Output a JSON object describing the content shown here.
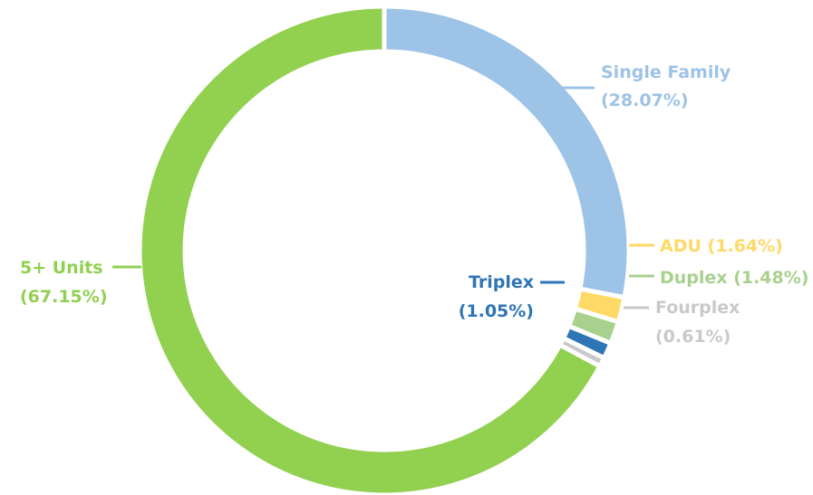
{
  "chart_data": {
    "type": "pie",
    "variant": "donut",
    "title": "",
    "slices": [
      {
        "name": "Single Family",
        "value": 28.07,
        "value_label": "(28.07%)",
        "color": "#9dc3e6"
      },
      {
        "name": "ADU",
        "value": 1.64,
        "value_label": "(1.64%)",
        "color": "#ffd966"
      },
      {
        "name": "Duplex",
        "value": 1.48,
        "value_label": "(1.48%)",
        "color": "#a9d18e"
      },
      {
        "name": "Triplex",
        "value": 1.05,
        "value_label": "(1.05%)",
        "color": "#2e75b6"
      },
      {
        "name": "Fourplex",
        "value": 0.61,
        "value_label": "(0.61%)",
        "color": "#c9c9c9"
      },
      {
        "name": "5+ Units",
        "value": 67.15,
        "value_label": "(67.15%)",
        "color": "#92d050"
      }
    ],
    "legend": "none",
    "start_angle": "12 o'clock, clockwise"
  }
}
